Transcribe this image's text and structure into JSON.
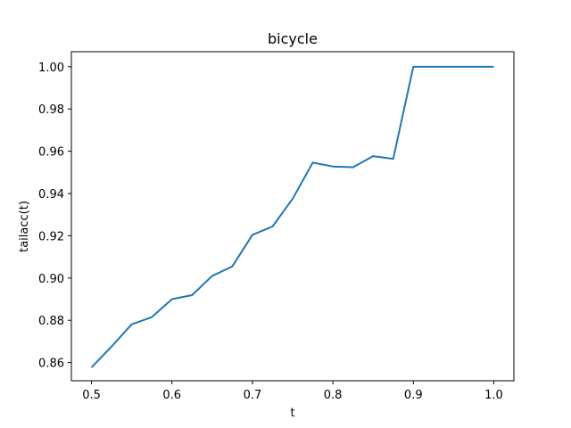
{
  "chart_data": {
    "type": "line",
    "title": "bicycle",
    "xlabel": "t",
    "ylabel": "tailacc(t)",
    "xlim": [
      0.475,
      1.025
    ],
    "ylim": [
      0.8514,
      1.0071
    ],
    "xticks": [
      0.5,
      0.6,
      0.7,
      0.8,
      0.9,
      1.0
    ],
    "xtick_labels": [
      "0.5",
      "0.6",
      "0.7",
      "0.8",
      "0.9",
      "1.0"
    ],
    "yticks": [
      0.86,
      0.88,
      0.9,
      0.92,
      0.94,
      0.96,
      0.98,
      1.0
    ],
    "ytick_labels": [
      "0.86",
      "0.88",
      "0.90",
      "0.92",
      "0.94",
      "0.96",
      "0.98",
      "1.00"
    ],
    "grid": false,
    "series": [
      {
        "color": "#1f77b4",
        "x": [
          0.5,
          0.525,
          0.55,
          0.575,
          0.6,
          0.625,
          0.65,
          0.675,
          0.7,
          0.725,
          0.75,
          0.775,
          0.8,
          0.825,
          0.85,
          0.875,
          0.9,
          0.925,
          0.95,
          0.975,
          1.0
        ],
        "y": [
          0.8577,
          0.8676,
          0.8781,
          0.8815,
          0.89,
          0.8919,
          0.901,
          0.9055,
          0.9204,
          0.9244,
          0.9375,
          0.9546,
          0.9528,
          0.9524,
          0.9577,
          0.9564,
          1.0,
          1.0,
          1.0,
          1.0,
          1.0
        ]
      }
    ]
  }
}
